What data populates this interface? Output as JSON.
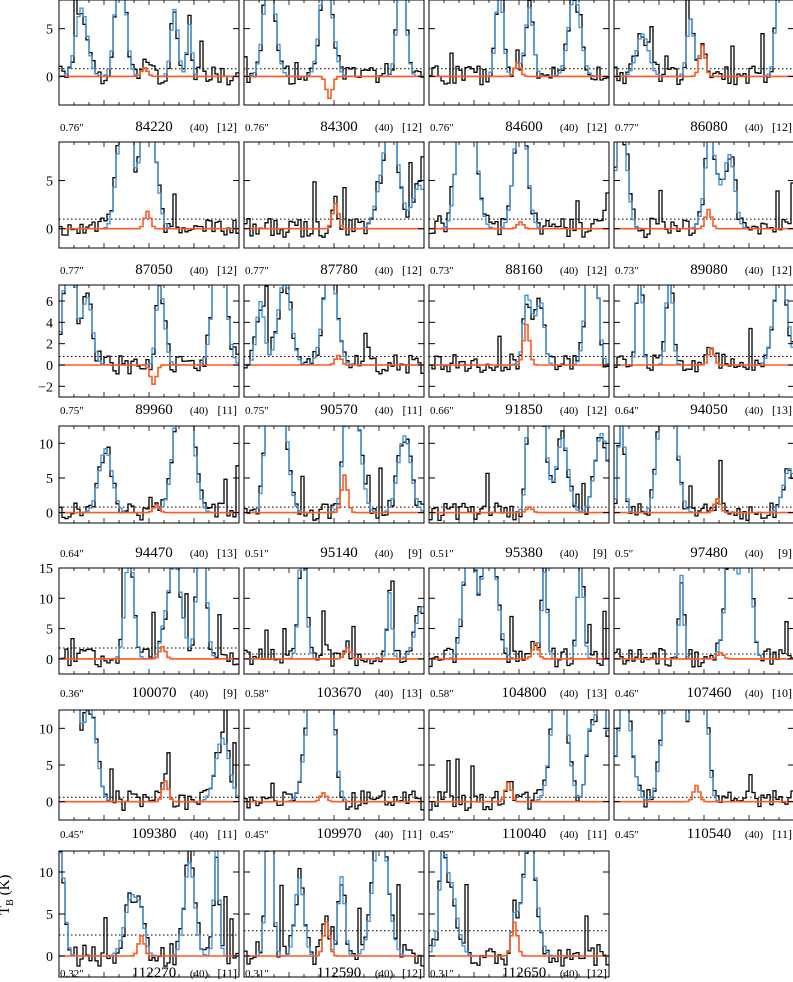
{
  "y_axis_label": {
    "main": "T",
    "sub": "B",
    "unit": " (K)"
  },
  "chart_data": {
    "type": "line",
    "grid": false,
    "series_colors": {
      "observed": "#000000",
      "model_total": "#3d8fd8",
      "model_molecule": "#ff5a1f",
      "threshold": "#000000"
    },
    "rows": [
      {
        "ylim": [
          -3,
          8
        ],
        "yticks": [
          0,
          5
        ],
        "tick_labels": [
          "0",
          "5"
        ]
      },
      {
        "ylim": [
          -2,
          9
        ],
        "yticks": [
          0,
          5
        ],
        "tick_labels": [
          "0",
          "5"
        ]
      },
      {
        "ylim": [
          -3,
          7.5
        ],
        "yticks": [
          -2,
          0,
          2,
          4,
          6
        ],
        "tick_labels": [
          "−2",
          "0",
          "2",
          "4",
          "6"
        ]
      },
      {
        "ylim": [
          -1.5,
          12.5
        ],
        "yticks": [
          0,
          5,
          10
        ],
        "tick_labels": [
          "0",
          "5",
          "10"
        ]
      },
      {
        "ylim": [
          -2.5,
          15
        ],
        "yticks": [
          0,
          5,
          10,
          15
        ],
        "tick_labels": [
          "0",
          "5",
          "10",
          "15"
        ]
      },
      {
        "ylim": [
          -2.5,
          12.5
        ],
        "yticks": [
          0,
          5,
          10
        ],
        "tick_labels": [
          "0",
          "5",
          "10"
        ]
      },
      {
        "ylim": [
          -2.5,
          12.5
        ],
        "yticks": [
          0,
          5,
          10
        ],
        "tick_labels": [
          "0",
          "5",
          "10"
        ]
      }
    ],
    "panels": [
      {
        "freq": "84220",
        "beam": "0.76″",
        "n1": "(40)",
        "n2": "[12]",
        "peak": 0.9,
        "threshold": 0.8
      },
      {
        "freq": "84300",
        "beam": "0.76″",
        "n1": "(40)",
        "n2": "[12]",
        "peak": -2.3,
        "threshold": 0.8
      },
      {
        "freq": "84600",
        "beam": "0.76″",
        "n1": "(40)",
        "n2": "[12]",
        "peak": 1.4,
        "threshold": 0.8
      },
      {
        "freq": "86080",
        "beam": "0.77″",
        "n1": "(40)",
        "n2": "[12]",
        "peak": 3.2,
        "threshold": 0.8
      },
      {
        "freq": "87050",
        "beam": "0.77″",
        "n1": "(40)",
        "n2": "[12]",
        "peak": 1.8,
        "threshold": 1.0
      },
      {
        "freq": "87780",
        "beam": "0.77″",
        "n1": "(40)",
        "n2": "[12]",
        "peak": 2.6,
        "threshold": 1.0
      },
      {
        "freq": "88160",
        "beam": "0.73″",
        "n1": "(40)",
        "n2": "[12]",
        "peak": 0.7,
        "threshold": 1.0
      },
      {
        "freq": "89080",
        "beam": "0.73″",
        "n1": "(40)",
        "n2": "[12]",
        "peak": 2.0,
        "threshold": 1.0
      },
      {
        "freq": "89960",
        "beam": "0.75″",
        "n1": "(40)",
        "n2": "[11]",
        "peak": -1.8,
        "threshold": 0.8
      },
      {
        "freq": "90570",
        "beam": "0.75″",
        "n1": "(40)",
        "n2": "[11]",
        "peak": 0.9,
        "threshold": 0.8
      },
      {
        "freq": "91850",
        "beam": "0.66″",
        "n1": "(40)",
        "n2": "[12]",
        "peak": 3.8,
        "threshold": 0.8
      },
      {
        "freq": "94050",
        "beam": "0.64″",
        "n1": "(40)",
        "n2": "[13]",
        "peak": 1.6,
        "threshold": 0.8
      },
      {
        "freq": "94470",
        "beam": "0.64″",
        "n1": "(40)",
        "n2": "[13]",
        "peak": 1.1,
        "threshold": 0.8
      },
      {
        "freq": "95140",
        "beam": "0.51″",
        "n1": "(40)",
        "n2": "[9]",
        "peak": 5.4,
        "threshold": 0.8
      },
      {
        "freq": "95380",
        "beam": "0.51″",
        "n1": "(40)",
        "n2": "[9]",
        "peak": 0.8,
        "threshold": 0.8
      },
      {
        "freq": "97480",
        "beam": "0.5″",
        "n1": "(40)",
        "n2": "[9]",
        "peak": 2.0,
        "threshold": 0.8
      },
      {
        "freq": "100070",
        "beam": "0.36″",
        "n1": "(40)",
        "n2": "[9]",
        "peak": 2.0,
        "threshold": 1.8
      },
      {
        "freq": "103670",
        "beam": "0.58″",
        "n1": "(40)",
        "n2": "[13]",
        "peak": 1.8,
        "threshold": 0.8
      },
      {
        "freq": "104800",
        "beam": "0.58″",
        "n1": "(40)",
        "n2": "[13]",
        "peak": 2.5,
        "threshold": 0.8
      },
      {
        "freq": "107460",
        "beam": "0.46″",
        "n1": "(40)",
        "n2": "[10]",
        "peak": 1.0,
        "threshold": 0.8
      },
      {
        "freq": "109380",
        "beam": "0.45″",
        "n1": "(40)",
        "n2": "[11]",
        "peak": 2.8,
        "threshold": 0.6
      },
      {
        "freq": "109970",
        "beam": "0.45″",
        "n1": "(40)",
        "n2": "[11]",
        "peak": 1.2,
        "threshold": 0.6
      },
      {
        "freq": "110040",
        "beam": "0.45″",
        "n1": "(40)",
        "n2": "[11]",
        "peak": 2.6,
        "threshold": 0.6
      },
      {
        "freq": "110540",
        "beam": "0.45″",
        "n1": "(40)",
        "n2": "[11]",
        "peak": 2.2,
        "threshold": 0.6
      },
      {
        "freq": "112270",
        "beam": "0.32″",
        "n1": "(40)",
        "n2": "[11]",
        "peak": 2.4,
        "threshold": 2.5
      },
      {
        "freq": "112590",
        "beam": "0.31″",
        "n1": "(40)",
        "n2": "[12]",
        "peak": 4.0,
        "threshold": 3.0
      },
      {
        "freq": "112650",
        "beam": "0.31″",
        "n1": "(40)",
        "n2": "[12]",
        "peak": 4.0,
        "threshold": 3.0
      }
    ]
  }
}
